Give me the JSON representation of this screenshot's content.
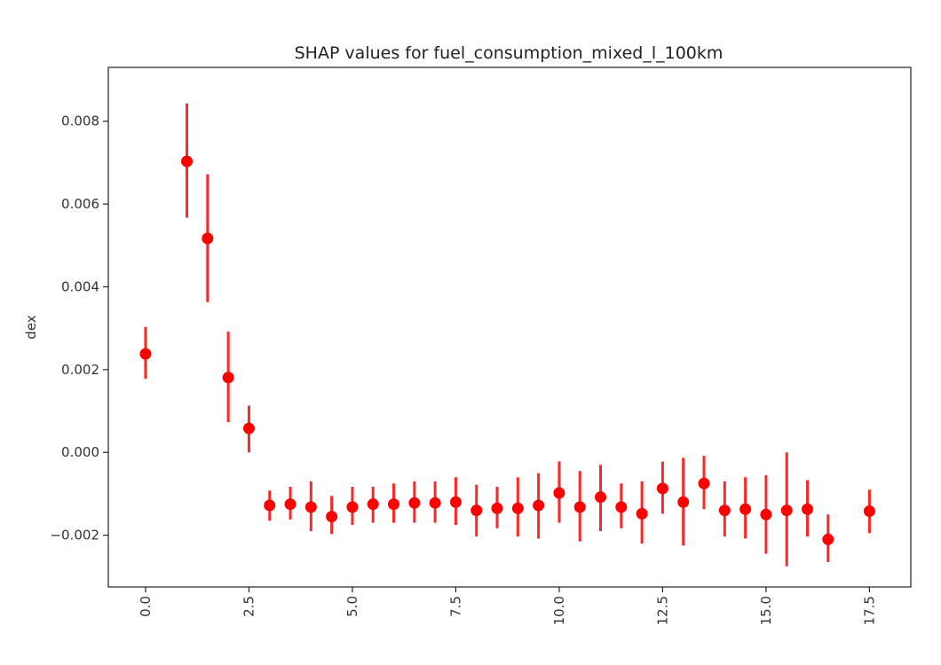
{
  "chart_data": {
    "type": "scatter",
    "title": "SHAP values for fuel_consumption_mixed_l_100km",
    "xlabel": "",
    "ylabel": "dex",
    "xlim": [
      -0.9,
      18.5
    ],
    "ylim": [
      -0.00325,
      0.0093
    ],
    "x_ticks": [
      {
        "value": 0.0,
        "label": "0.0"
      },
      {
        "value": 2.5,
        "label": "2.5"
      },
      {
        "value": 5.0,
        "label": "5.0"
      },
      {
        "value": 7.5,
        "label": "7.5"
      },
      {
        "value": 10.0,
        "label": "10.0"
      },
      {
        "value": 12.5,
        "label": "12.5"
      },
      {
        "value": 15.0,
        "label": "15.0"
      },
      {
        "value": 17.5,
        "label": "17.5"
      }
    ],
    "y_ticks": [
      {
        "value": -0.002,
        "label": "−0.002"
      },
      {
        "value": 0.0,
        "label": "0.000"
      },
      {
        "value": 0.002,
        "label": "0.002"
      },
      {
        "value": 0.004,
        "label": "0.004"
      },
      {
        "value": 0.006,
        "label": "0.006"
      },
      {
        "value": 0.008,
        "label": "0.008"
      }
    ],
    "grid": false,
    "color": "#ff0000",
    "points": [
      {
        "x": 0.0,
        "y": 0.00238,
        "ylow": 0.00178,
        "yhigh": 0.00303
      },
      {
        "x": 1.0,
        "y": 0.00703,
        "ylow": 0.00567,
        "yhigh": 0.00843
      },
      {
        "x": 1.5,
        "y": 0.00517,
        "ylow": 0.00363,
        "yhigh": 0.00672
      },
      {
        "x": 2.0,
        "y": 0.00181,
        "ylow": 0.00073,
        "yhigh": 0.00292
      },
      {
        "x": 2.5,
        "y": 0.00058,
        "ylow": 0.0,
        "yhigh": 0.00113
      },
      {
        "x": 3.0,
        "y": -0.00128,
        "ylow": -0.00165,
        "yhigh": -0.00092
      },
      {
        "x": 3.5,
        "y": -0.00125,
        "ylow": -0.00162,
        "yhigh": -0.00083
      },
      {
        "x": 4.0,
        "y": -0.00132,
        "ylow": -0.0019,
        "yhigh": -0.0007
      },
      {
        "x": 4.5,
        "y": -0.00155,
        "ylow": -0.00197,
        "yhigh": -0.00105
      },
      {
        "x": 5.0,
        "y": -0.00132,
        "ylow": -0.00175,
        "yhigh": -0.00083
      },
      {
        "x": 5.5,
        "y": -0.00125,
        "ylow": -0.0017,
        "yhigh": -0.00083
      },
      {
        "x": 6.0,
        "y": -0.00125,
        "ylow": -0.0017,
        "yhigh": -0.00075
      },
      {
        "x": 6.5,
        "y": -0.00122,
        "ylow": -0.0017,
        "yhigh": -0.0007
      },
      {
        "x": 7.0,
        "y": -0.00122,
        "ylow": -0.0017,
        "yhigh": -0.0007
      },
      {
        "x": 7.5,
        "y": -0.0012,
        "ylow": -0.00175,
        "yhigh": -0.0006
      },
      {
        "x": 8.0,
        "y": -0.0014,
        "ylow": -0.00203,
        "yhigh": -0.00078
      },
      {
        "x": 8.5,
        "y": -0.00135,
        "ylow": -0.00183,
        "yhigh": -0.00083
      },
      {
        "x": 9.0,
        "y": -0.00135,
        "ylow": -0.00203,
        "yhigh": -0.0006
      },
      {
        "x": 9.5,
        "y": -0.00128,
        "ylow": -0.00208,
        "yhigh": -0.0005
      },
      {
        "x": 10.0,
        "y": -0.00098,
        "ylow": -0.0017,
        "yhigh": -0.00022
      },
      {
        "x": 10.5,
        "y": -0.00132,
        "ylow": -0.00215,
        "yhigh": -0.00045
      },
      {
        "x": 11.0,
        "y": -0.00108,
        "ylow": -0.0019,
        "yhigh": -0.0003
      },
      {
        "x": 11.5,
        "y": -0.00132,
        "ylow": -0.00183,
        "yhigh": -0.00075
      },
      {
        "x": 12.0,
        "y": -0.00148,
        "ylow": -0.0022,
        "yhigh": -0.0007
      },
      {
        "x": 12.5,
        "y": -0.00087,
        "ylow": -0.00148,
        "yhigh": -0.00022
      },
      {
        "x": 13.0,
        "y": -0.0012,
        "ylow": -0.00225,
        "yhigh": -0.00013
      },
      {
        "x": 13.5,
        "y": -0.00075,
        "ylow": -0.00137,
        "yhigh": -8e-05
      },
      {
        "x": 14.0,
        "y": -0.0014,
        "ylow": -0.00203,
        "yhigh": -0.0007
      },
      {
        "x": 14.5,
        "y": -0.00137,
        "ylow": -0.00208,
        "yhigh": -0.0006
      },
      {
        "x": 15.0,
        "y": -0.0015,
        "ylow": -0.00245,
        "yhigh": -0.00055
      },
      {
        "x": 15.5,
        "y": -0.0014,
        "ylow": -0.00275,
        "yhigh": 0.0
      },
      {
        "x": 16.0,
        "y": -0.00137,
        "ylow": -0.00203,
        "yhigh": -0.00067
      },
      {
        "x": 16.5,
        "y": -0.0021,
        "ylow": -0.00265,
        "yhigh": -0.0015
      },
      {
        "x": 17.5,
        "y": -0.00142,
        "ylow": -0.00195,
        "yhigh": -0.0009
      }
    ]
  }
}
